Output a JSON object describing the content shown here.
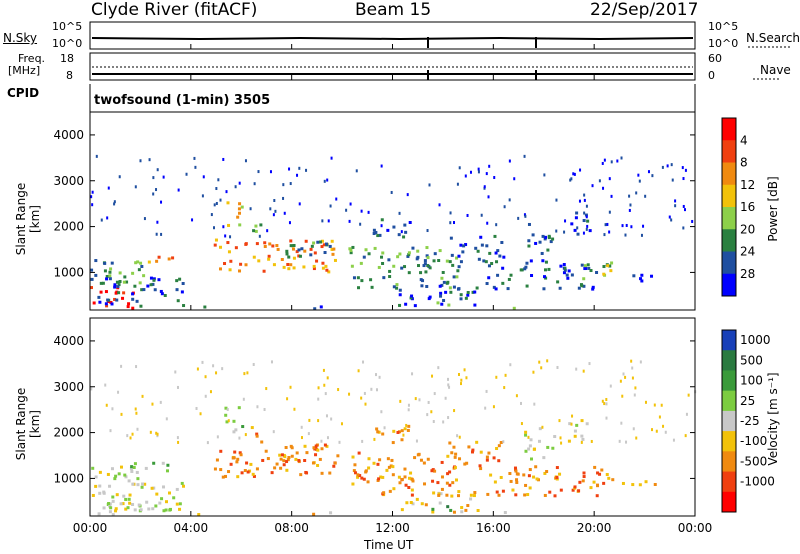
{
  "header": {
    "station": "Clyde River (fitACF)",
    "beam": "Beam 15",
    "date": "22/Sep/2017"
  },
  "noise_panel": {
    "left_label": "N.Sky",
    "right_label": "N.Search",
    "ticks": [
      "10^5",
      "10^0"
    ]
  },
  "freq_panel": {
    "left_label_1": "Freq.",
    "left_label_2": "[MHz]",
    "left_ticks": [
      "18",
      "8"
    ],
    "right_label": "Nave",
    "right_ticks": [
      "60",
      "0"
    ]
  },
  "cpid": {
    "label": "CPID",
    "program": "twofsound (1-min) 3505"
  },
  "chart_data": [
    {
      "type": "heatmap",
      "title": "",
      "ylabel": "Slant Range [km]",
      "ylim": [
        180,
        4500
      ],
      "y_ticks": [
        "1000",
        "2000",
        "3000",
        "4000"
      ],
      "colorbar_label": "Power [dB]",
      "colorbar_ticks": [
        "4",
        "8",
        "12",
        "16",
        "20",
        "24",
        "28"
      ],
      "colors": [
        "#0000ff",
        "#1f4fa0",
        "#2a8040",
        "#8dd04a",
        "#f2c20a",
        "#f08a10",
        "#f04010",
        "#ff0000"
      ]
    },
    {
      "type": "heatmap",
      "title": "",
      "ylabel": "Slant Range [km]",
      "ylim": [
        180,
        4500
      ],
      "y_ticks": [
        "1000",
        "2000",
        "3000",
        "4000"
      ],
      "colorbar_label": "Velocity [m s⁻¹]",
      "colorbar_ticks": [
        "1000",
        "500",
        "100",
        "25",
        "-25",
        "-100",
        "-500",
        "-1000"
      ],
      "colors": [
        "#1840b8",
        "#2a7a40",
        "#3a9a3a",
        "#7ccc40",
        "#c8c8c8",
        "#f2c20a",
        "#f08a10",
        "#f04010",
        "#ff0000"
      ]
    }
  ],
  "time_axis": {
    "xlabel": "Time UT",
    "ticks": [
      "00:00",
      "04:00",
      "08:00",
      "12:00",
      "16:00",
      "20:00",
      "00:00"
    ]
  }
}
